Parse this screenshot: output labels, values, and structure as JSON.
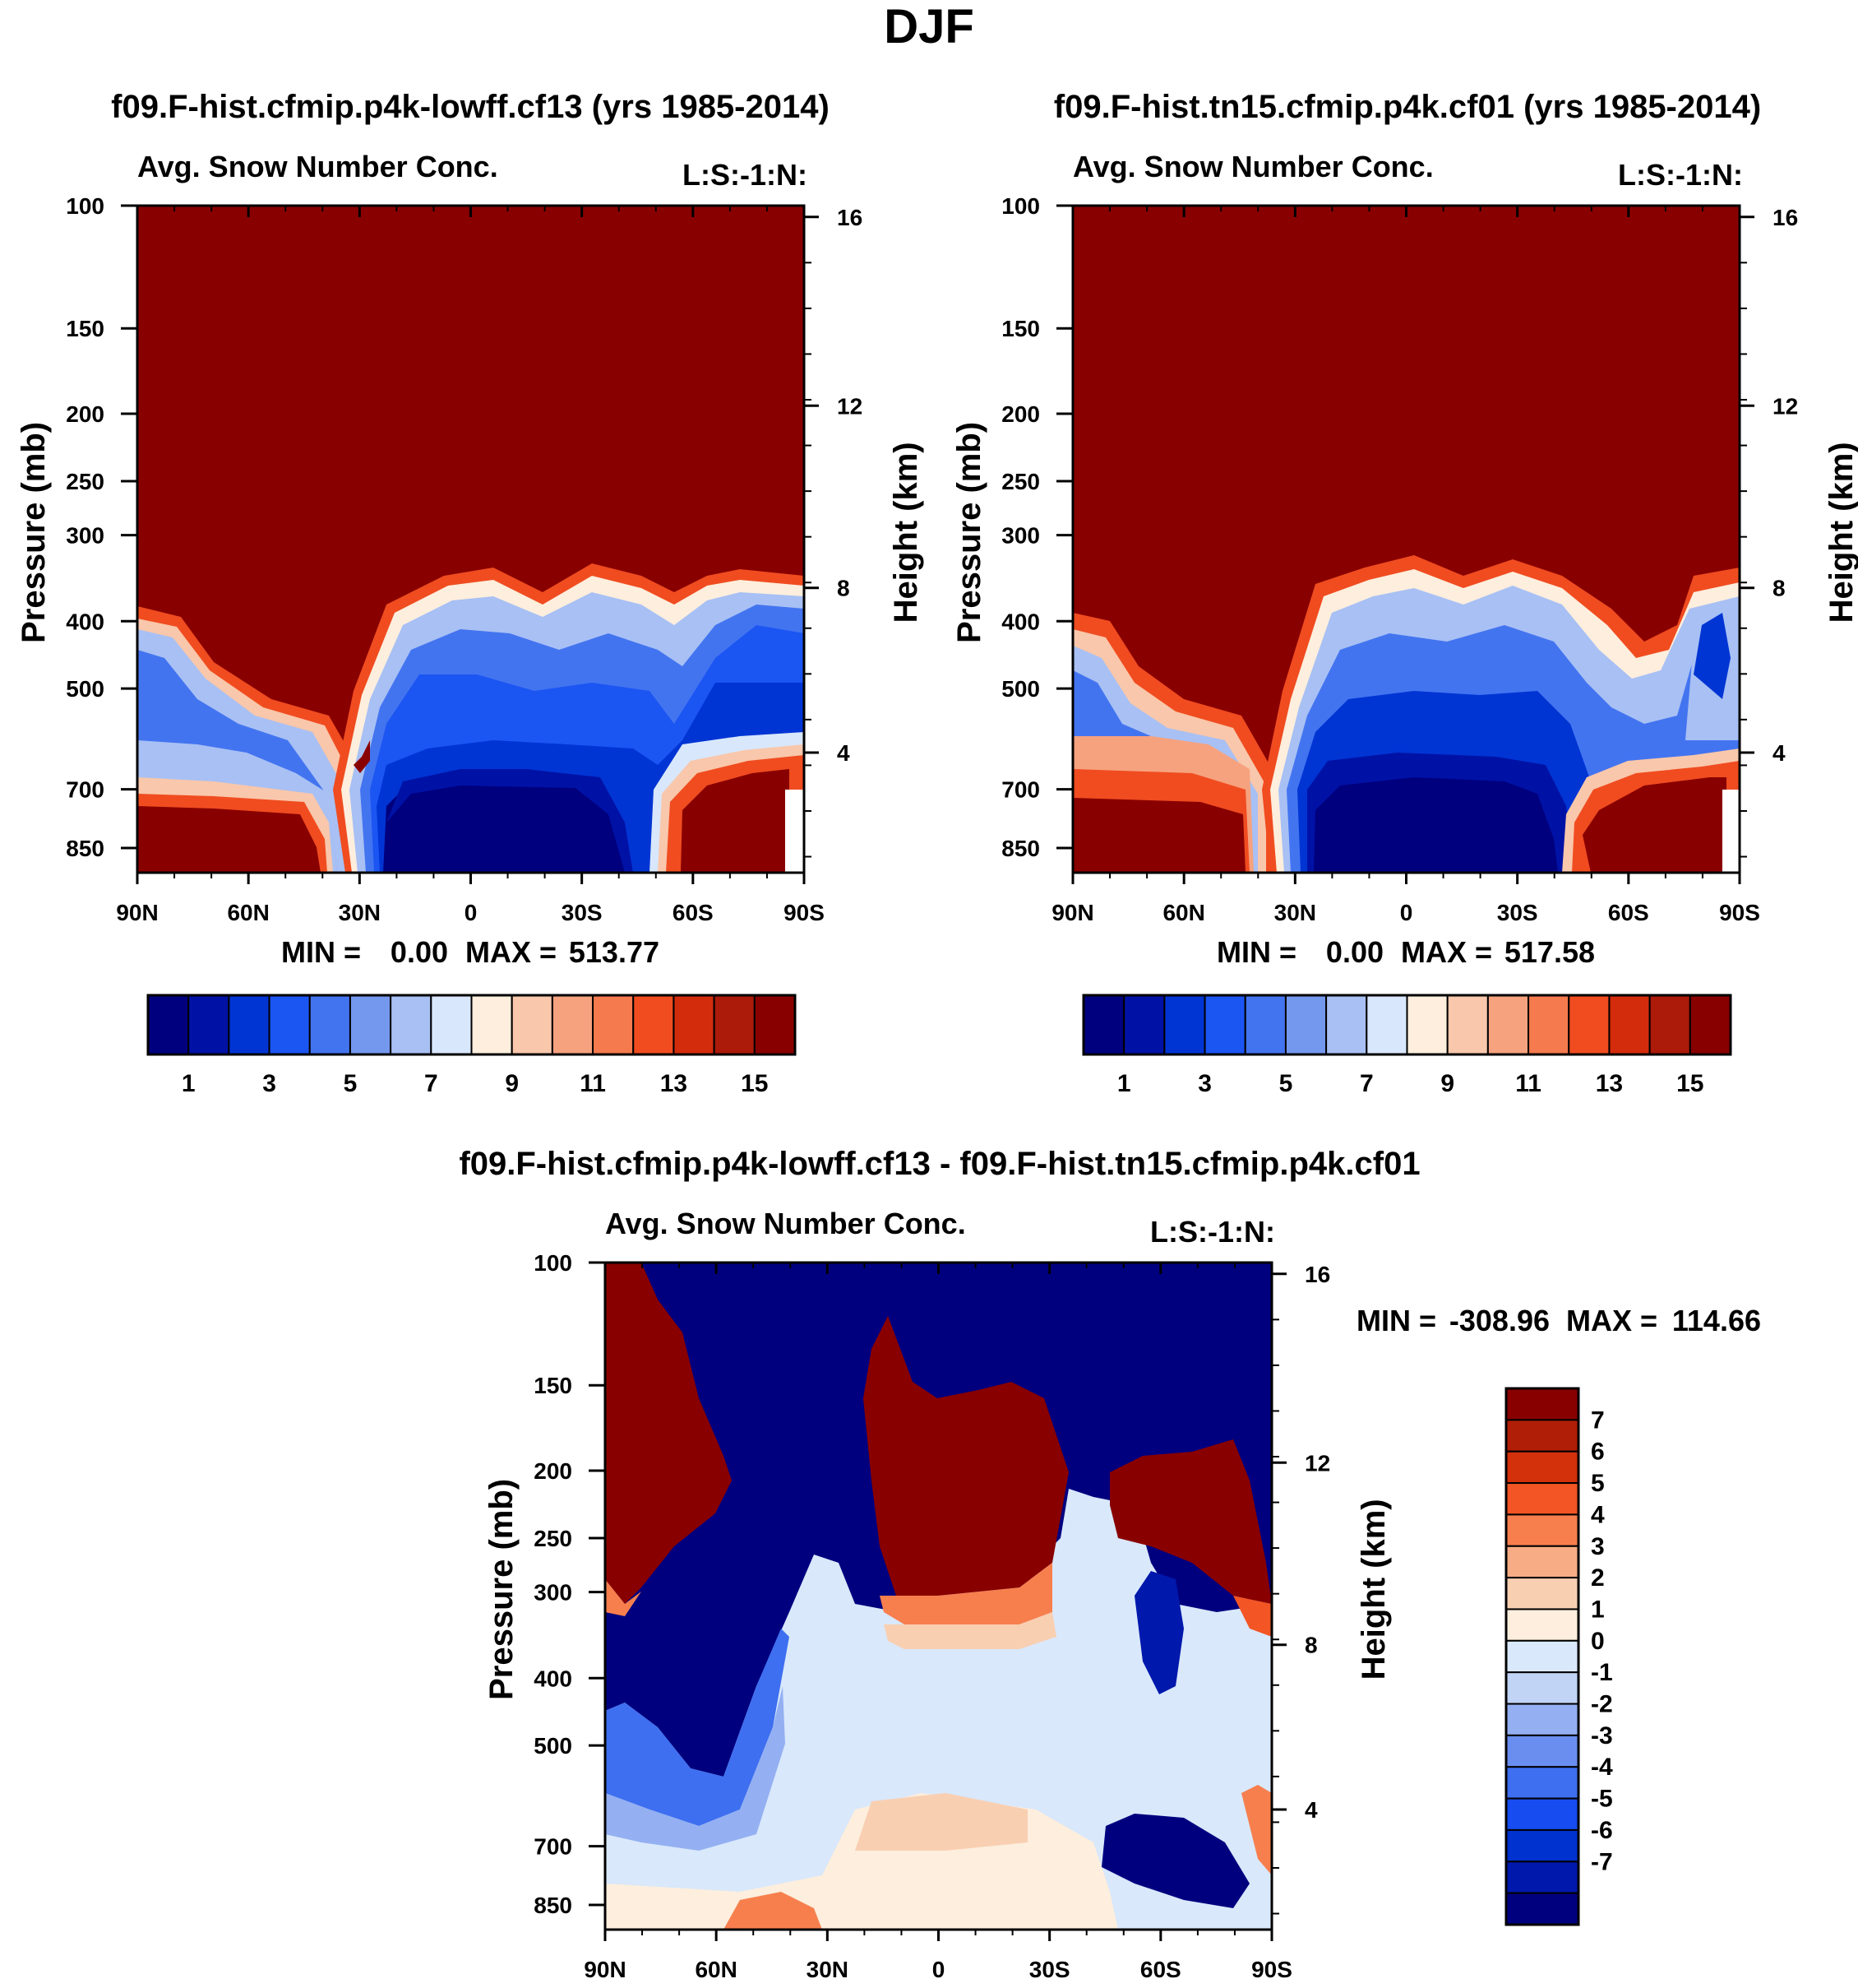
{
  "page_title": "DJF",
  "colors": {
    "seq": [
      "#00007f",
      "#0012a6",
      "#0035d4",
      "#1b55f2",
      "#4374f0",
      "#7598ef",
      "#a8c0f4",
      "#d8e7fb",
      "#fdeedd",
      "#f9c7ab",
      "#f6a27e",
      "#f57a4e",
      "#f04c20",
      "#d32c0c",
      "#ac1a09",
      "#890000"
    ],
    "diff": [
      "#00007f",
      "#0018ac",
      "#0032d0",
      "#164cf0",
      "#3e6ff0",
      "#6a8ef0",
      "#94b0f2",
      "#c1d4f6",
      "#d9e8fb",
      "#fdeedd",
      "#f9cfb2",
      "#f7ac86",
      "#f77f4e",
      "#f35524",
      "#d3300c",
      "#b01e07",
      "#890000"
    ]
  },
  "chart_data": [
    {
      "id": "panel1",
      "type": "heatmap",
      "title": "f09.F-hist.cfmip.p4k-lowff.cf13 (yrs 1985-2014)",
      "subtitle_left": "Avg. Snow Number Conc.",
      "subtitle_right": "L:S:-1:N:",
      "ylabel": "Pressure (mb)",
      "ylabel_right": "Height (km)",
      "x_ticks": [
        "90N",
        "60N",
        "30N",
        "0",
        "30S",
        "60S",
        "90S"
      ],
      "y_ticks": [
        "100",
        "150",
        "200",
        "250",
        "300",
        "400",
        "500",
        "700",
        "850"
      ],
      "y_right_ticks": [
        "16",
        "12",
        "8",
        "4"
      ],
      "stats": {
        "min_label": "MIN =",
        "min": "0.00",
        "max_label": "MAX =",
        "max": "513.77"
      },
      "colorbar": {
        "orientation": "horizontal",
        "labels": [
          "1",
          "3",
          "5",
          "7",
          "9",
          "11",
          "13",
          "15"
        ]
      }
    },
    {
      "id": "panel2",
      "type": "heatmap",
      "title": "f09.F-hist.tn15.cfmip.p4k.cf01 (yrs 1985-2014)",
      "subtitle_left": "Avg. Snow Number Conc.",
      "subtitle_right": "L:S:-1:N:",
      "ylabel": "Pressure (mb)",
      "ylabel_right": "Height (km)",
      "x_ticks": [
        "90N",
        "60N",
        "30N",
        "0",
        "30S",
        "60S",
        "90S"
      ],
      "y_ticks": [
        "100",
        "150",
        "200",
        "250",
        "300",
        "400",
        "500",
        "700",
        "850"
      ],
      "y_right_ticks": [
        "16",
        "12",
        "8",
        "4"
      ],
      "stats": {
        "min_label": "MIN =",
        "min": "0.00",
        "max_label": "MAX =",
        "max": "517.58"
      },
      "colorbar": {
        "orientation": "horizontal",
        "labels": [
          "1",
          "3",
          "5",
          "7",
          "9",
          "11",
          "13",
          "15"
        ]
      }
    },
    {
      "id": "panel3",
      "type": "heatmap",
      "title": "f09.F-hist.cfmip.p4k-lowff.cf13 - f09.F-hist.tn15.cfmip.p4k.cf01",
      "subtitle_left": "Avg. Snow Number Conc.",
      "subtitle_right": "L:S:-1:N:",
      "ylabel": "Pressure (mb)",
      "ylabel_right": "Height (km)",
      "x_ticks": [
        "90N",
        "60N",
        "30N",
        "0",
        "30S",
        "60S",
        "90S"
      ],
      "y_ticks": [
        "100",
        "150",
        "200",
        "250",
        "300",
        "400",
        "500",
        "700",
        "850"
      ],
      "y_right_ticks": [
        "16",
        "12",
        "8",
        "4"
      ],
      "stats": {
        "min_label": "MIN =",
        "min": "-308.96",
        "max_label": "MAX =",
        "max": "114.66"
      },
      "colorbar": {
        "orientation": "vertical",
        "labels": [
          "7",
          "6",
          "5",
          "4",
          "3",
          "2",
          "1",
          "0",
          "-1",
          "-2",
          "-3",
          "-4",
          "-5",
          "-6",
          "-7"
        ]
      }
    }
  ]
}
